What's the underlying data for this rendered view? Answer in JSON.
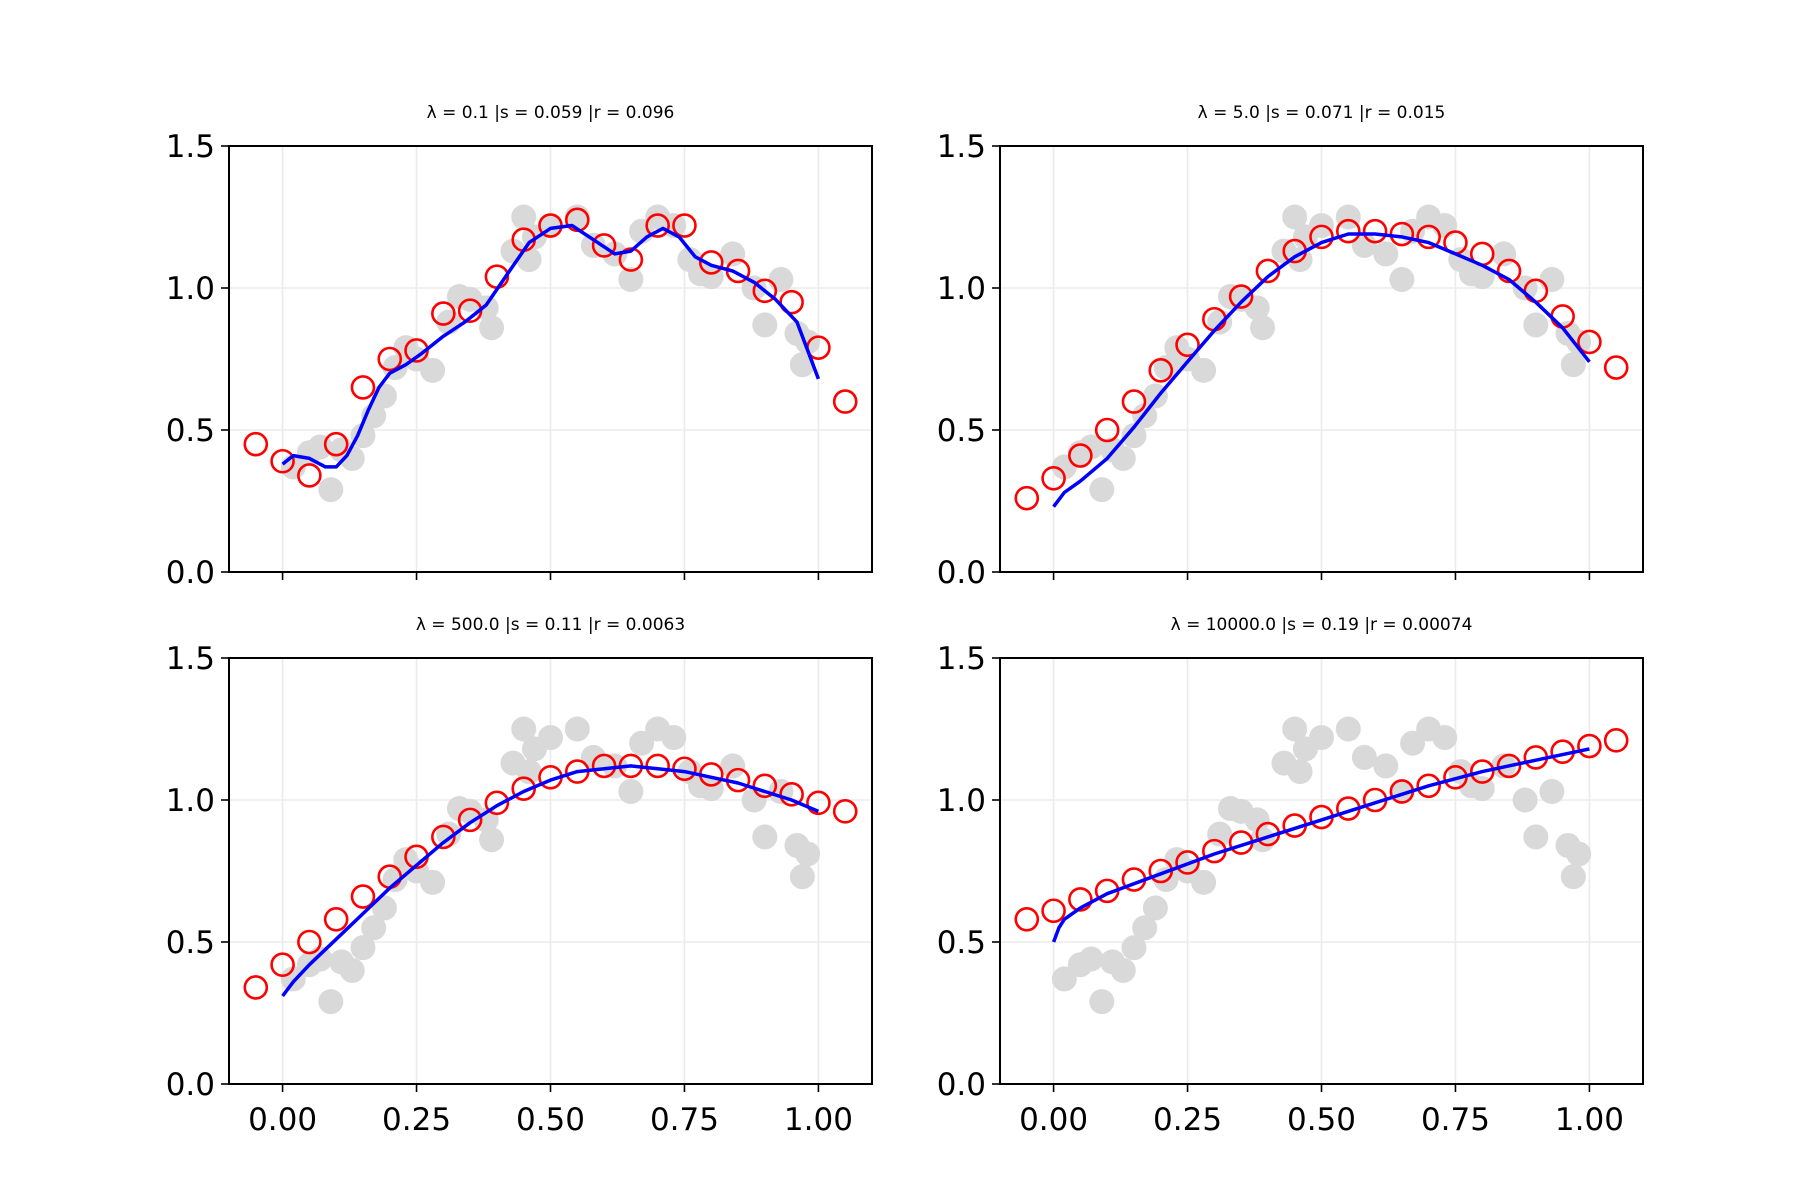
{
  "colors": {
    "raw_points": "#d9d9d9",
    "smoothed_markers": "#ff0000",
    "fit_line": "#0000ff",
    "grid": "#ebebeb",
    "axes": "#000000"
  },
  "chart_data": [
    {
      "type": "scatter",
      "title": "λ = 0.1 |s = 0.059 |r = 0.096",
      "xlim": [
        -0.1,
        1.1
      ],
      "ylim": [
        0.0,
        1.5
      ],
      "xticks": [
        "0.00",
        "0.25",
        "0.50",
        "0.75",
        "1.00"
      ],
      "yticks": [
        "0.0",
        "0.5",
        "1.0",
        "1.5"
      ],
      "show_xtick_labels": false,
      "grid": true,
      "raw": [
        [
          0.02,
          0.37
        ],
        [
          0.05,
          0.42
        ],
        [
          0.07,
          0.44
        ],
        [
          0.09,
          0.29
        ],
        [
          0.11,
          0.43
        ],
        [
          0.13,
          0.4
        ],
        [
          0.15,
          0.48
        ],
        [
          0.17,
          0.55
        ],
        [
          0.19,
          0.62
        ],
        [
          0.21,
          0.72
        ],
        [
          0.23,
          0.79
        ],
        [
          0.25,
          0.75
        ],
        [
          0.28,
          0.71
        ],
        [
          0.31,
          0.88
        ],
        [
          0.33,
          0.97
        ],
        [
          0.35,
          0.96
        ],
        [
          0.38,
          0.93
        ],
        [
          0.39,
          0.86
        ],
        [
          0.43,
          1.13
        ],
        [
          0.45,
          1.25
        ],
        [
          0.46,
          1.1
        ],
        [
          0.47,
          1.18
        ],
        [
          0.5,
          1.22
        ],
        [
          0.55,
          1.25
        ],
        [
          0.58,
          1.15
        ],
        [
          0.62,
          1.12
        ],
        [
          0.65,
          1.03
        ],
        [
          0.67,
          1.2
        ],
        [
          0.7,
          1.25
        ],
        [
          0.73,
          1.22
        ],
        [
          0.76,
          1.1
        ],
        [
          0.78,
          1.05
        ],
        [
          0.8,
          1.04
        ],
        [
          0.84,
          1.12
        ],
        [
          0.88,
          1.0
        ],
        [
          0.9,
          0.87
        ],
        [
          0.93,
          1.03
        ],
        [
          0.96,
          0.84
        ],
        [
          0.97,
          0.73
        ],
        [
          0.98,
          0.81
        ]
      ],
      "smoothed": [
        [
          -0.05,
          0.45
        ],
        [
          0.0,
          0.39
        ],
        [
          0.05,
          0.34
        ],
        [
          0.1,
          0.45
        ],
        [
          0.15,
          0.65
        ],
        [
          0.2,
          0.75
        ],
        [
          0.25,
          0.78
        ],
        [
          0.3,
          0.91
        ],
        [
          0.35,
          0.92
        ],
        [
          0.4,
          1.04
        ],
        [
          0.45,
          1.17
        ],
        [
          0.5,
          1.22
        ],
        [
          0.55,
          1.24
        ],
        [
          0.6,
          1.15
        ],
        [
          0.65,
          1.1
        ],
        [
          0.7,
          1.22
        ],
        [
          0.75,
          1.22
        ],
        [
          0.8,
          1.09
        ],
        [
          0.85,
          1.06
        ],
        [
          0.9,
          0.99
        ],
        [
          0.95,
          0.95
        ],
        [
          1.0,
          0.79
        ],
        [
          1.05,
          0.6
        ]
      ],
      "fit": [
        [
          0.0,
          0.38
        ],
        [
          0.02,
          0.41
        ],
        [
          0.05,
          0.4
        ],
        [
          0.08,
          0.37
        ],
        [
          0.1,
          0.37
        ],
        [
          0.12,
          0.41
        ],
        [
          0.14,
          0.48
        ],
        [
          0.16,
          0.57
        ],
        [
          0.18,
          0.65
        ],
        [
          0.2,
          0.7
        ],
        [
          0.23,
          0.73
        ],
        [
          0.26,
          0.77
        ],
        [
          0.3,
          0.83
        ],
        [
          0.34,
          0.88
        ],
        [
          0.38,
          0.94
        ],
        [
          0.42,
          1.05
        ],
        [
          0.46,
          1.16
        ],
        [
          0.5,
          1.21
        ],
        [
          0.54,
          1.22
        ],
        [
          0.58,
          1.17
        ],
        [
          0.62,
          1.12
        ],
        [
          0.65,
          1.13
        ],
        [
          0.68,
          1.18
        ],
        [
          0.71,
          1.21
        ],
        [
          0.74,
          1.18
        ],
        [
          0.77,
          1.11
        ],
        [
          0.8,
          1.08
        ],
        [
          0.84,
          1.06
        ],
        [
          0.88,
          1.02
        ],
        [
          0.92,
          0.96
        ],
        [
          0.96,
          0.88
        ],
        [
          1.0,
          0.68
        ]
      ]
    },
    {
      "type": "scatter",
      "title": "λ = 5.0 |s = 0.071 |r = 0.015",
      "xlim": [
        -0.1,
        1.1
      ],
      "ylim": [
        0.0,
        1.5
      ],
      "xticks": [
        "0.00",
        "0.25",
        "0.50",
        "0.75",
        "1.00"
      ],
      "yticks": [
        "0.0",
        "0.5",
        "1.0",
        "1.5"
      ],
      "show_xtick_labels": false,
      "grid": true,
      "raw": [
        [
          0.02,
          0.37
        ],
        [
          0.05,
          0.42
        ],
        [
          0.07,
          0.44
        ],
        [
          0.09,
          0.29
        ],
        [
          0.11,
          0.43
        ],
        [
          0.13,
          0.4
        ],
        [
          0.15,
          0.48
        ],
        [
          0.17,
          0.55
        ],
        [
          0.19,
          0.62
        ],
        [
          0.21,
          0.72
        ],
        [
          0.23,
          0.79
        ],
        [
          0.25,
          0.75
        ],
        [
          0.28,
          0.71
        ],
        [
          0.31,
          0.88
        ],
        [
          0.33,
          0.97
        ],
        [
          0.35,
          0.96
        ],
        [
          0.38,
          0.93
        ],
        [
          0.39,
          0.86
        ],
        [
          0.43,
          1.13
        ],
        [
          0.45,
          1.25
        ],
        [
          0.46,
          1.1
        ],
        [
          0.47,
          1.18
        ],
        [
          0.5,
          1.22
        ],
        [
          0.55,
          1.25
        ],
        [
          0.58,
          1.15
        ],
        [
          0.62,
          1.12
        ],
        [
          0.65,
          1.03
        ],
        [
          0.67,
          1.2
        ],
        [
          0.7,
          1.25
        ],
        [
          0.73,
          1.22
        ],
        [
          0.76,
          1.1
        ],
        [
          0.78,
          1.05
        ],
        [
          0.8,
          1.04
        ],
        [
          0.84,
          1.12
        ],
        [
          0.88,
          1.0
        ],
        [
          0.9,
          0.87
        ],
        [
          0.93,
          1.03
        ],
        [
          0.96,
          0.84
        ],
        [
          0.97,
          0.73
        ],
        [
          0.98,
          0.81
        ]
      ],
      "smoothed": [
        [
          -0.05,
          0.26
        ],
        [
          0.0,
          0.33
        ],
        [
          0.05,
          0.41
        ],
        [
          0.1,
          0.5
        ],
        [
          0.15,
          0.6
        ],
        [
          0.2,
          0.71
        ],
        [
          0.25,
          0.8
        ],
        [
          0.3,
          0.89
        ],
        [
          0.35,
          0.97
        ],
        [
          0.4,
          1.06
        ],
        [
          0.45,
          1.13
        ],
        [
          0.5,
          1.18
        ],
        [
          0.55,
          1.2
        ],
        [
          0.6,
          1.2
        ],
        [
          0.65,
          1.19
        ],
        [
          0.7,
          1.18
        ],
        [
          0.75,
          1.16
        ],
        [
          0.8,
          1.12
        ],
        [
          0.85,
          1.06
        ],
        [
          0.9,
          0.99
        ],
        [
          0.95,
          0.9
        ],
        [
          1.0,
          0.81
        ],
        [
          1.05,
          0.72
        ]
      ],
      "fit": [
        [
          0.0,
          0.23
        ],
        [
          0.02,
          0.28
        ],
        [
          0.05,
          0.32
        ],
        [
          0.1,
          0.4
        ],
        [
          0.15,
          0.51
        ],
        [
          0.2,
          0.63
        ],
        [
          0.25,
          0.74
        ],
        [
          0.3,
          0.85
        ],
        [
          0.35,
          0.95
        ],
        [
          0.4,
          1.04
        ],
        [
          0.45,
          1.11
        ],
        [
          0.5,
          1.16
        ],
        [
          0.55,
          1.19
        ],
        [
          0.6,
          1.19
        ],
        [
          0.65,
          1.18
        ],
        [
          0.7,
          1.16
        ],
        [
          0.75,
          1.12
        ],
        [
          0.8,
          1.08
        ],
        [
          0.85,
          1.03
        ],
        [
          0.9,
          0.95
        ],
        [
          0.95,
          0.86
        ],
        [
          1.0,
          0.74
        ]
      ]
    },
    {
      "type": "scatter",
      "title": "λ = 500.0 |s = 0.11 |r = 0.0063",
      "xlim": [
        -0.1,
        1.1
      ],
      "ylim": [
        0.0,
        1.5
      ],
      "xticks": [
        "0.00",
        "0.25",
        "0.50",
        "0.75",
        "1.00"
      ],
      "yticks": [
        "0.0",
        "0.5",
        "1.0",
        "1.5"
      ],
      "show_xtick_labels": true,
      "grid": true,
      "raw": [
        [
          0.02,
          0.37
        ],
        [
          0.05,
          0.42
        ],
        [
          0.07,
          0.44
        ],
        [
          0.09,
          0.29
        ],
        [
          0.11,
          0.43
        ],
        [
          0.13,
          0.4
        ],
        [
          0.15,
          0.48
        ],
        [
          0.17,
          0.55
        ],
        [
          0.19,
          0.62
        ],
        [
          0.21,
          0.72
        ],
        [
          0.23,
          0.79
        ],
        [
          0.25,
          0.75
        ],
        [
          0.28,
          0.71
        ],
        [
          0.31,
          0.88
        ],
        [
          0.33,
          0.97
        ],
        [
          0.35,
          0.96
        ],
        [
          0.38,
          0.93
        ],
        [
          0.39,
          0.86
        ],
        [
          0.43,
          1.13
        ],
        [
          0.45,
          1.25
        ],
        [
          0.46,
          1.1
        ],
        [
          0.47,
          1.18
        ],
        [
          0.5,
          1.22
        ],
        [
          0.55,
          1.25
        ],
        [
          0.58,
          1.15
        ],
        [
          0.62,
          1.12
        ],
        [
          0.65,
          1.03
        ],
        [
          0.67,
          1.2
        ],
        [
          0.7,
          1.25
        ],
        [
          0.73,
          1.22
        ],
        [
          0.76,
          1.1
        ],
        [
          0.78,
          1.05
        ],
        [
          0.8,
          1.04
        ],
        [
          0.84,
          1.12
        ],
        [
          0.88,
          1.0
        ],
        [
          0.9,
          0.87
        ],
        [
          0.93,
          1.03
        ],
        [
          0.96,
          0.84
        ],
        [
          0.97,
          0.73
        ],
        [
          0.98,
          0.81
        ]
      ],
      "smoothed": [
        [
          -0.05,
          0.34
        ],
        [
          0.0,
          0.42
        ],
        [
          0.05,
          0.5
        ],
        [
          0.1,
          0.58
        ],
        [
          0.15,
          0.66
        ],
        [
          0.2,
          0.73
        ],
        [
          0.25,
          0.8
        ],
        [
          0.3,
          0.87
        ],
        [
          0.35,
          0.93
        ],
        [
          0.4,
          0.99
        ],
        [
          0.45,
          1.04
        ],
        [
          0.5,
          1.08
        ],
        [
          0.55,
          1.1
        ],
        [
          0.6,
          1.12
        ],
        [
          0.65,
          1.12
        ],
        [
          0.7,
          1.12
        ],
        [
          0.75,
          1.11
        ],
        [
          0.8,
          1.09
        ],
        [
          0.85,
          1.07
        ],
        [
          0.9,
          1.05
        ],
        [
          0.95,
          1.02
        ],
        [
          1.0,
          0.99
        ],
        [
          1.05,
          0.96
        ]
      ],
      "fit": [
        [
          0.0,
          0.31
        ],
        [
          0.02,
          0.36
        ],
        [
          0.05,
          0.42
        ],
        [
          0.1,
          0.51
        ],
        [
          0.15,
          0.6
        ],
        [
          0.2,
          0.69
        ],
        [
          0.25,
          0.77
        ],
        [
          0.3,
          0.85
        ],
        [
          0.35,
          0.92
        ],
        [
          0.4,
          0.98
        ],
        [
          0.45,
          1.03
        ],
        [
          0.5,
          1.07
        ],
        [
          0.55,
          1.1
        ],
        [
          0.6,
          1.11
        ],
        [
          0.65,
          1.12
        ],
        [
          0.7,
          1.11
        ],
        [
          0.75,
          1.1
        ],
        [
          0.8,
          1.08
        ],
        [
          0.85,
          1.06
        ],
        [
          0.9,
          1.03
        ],
        [
          0.95,
          1.0
        ],
        [
          1.0,
          0.96
        ]
      ]
    },
    {
      "type": "scatter",
      "title": "λ = 10000.0 |s = 0.19 |r = 0.00074",
      "xlim": [
        -0.1,
        1.1
      ],
      "ylim": [
        0.0,
        1.5
      ],
      "xticks": [
        "0.00",
        "0.25",
        "0.50",
        "0.75",
        "1.00"
      ],
      "yticks": [
        "0.0",
        "0.5",
        "1.0",
        "1.5"
      ],
      "show_xtick_labels": true,
      "grid": true,
      "raw": [
        [
          0.02,
          0.37
        ],
        [
          0.05,
          0.42
        ],
        [
          0.07,
          0.44
        ],
        [
          0.09,
          0.29
        ],
        [
          0.11,
          0.43
        ],
        [
          0.13,
          0.4
        ],
        [
          0.15,
          0.48
        ],
        [
          0.17,
          0.55
        ],
        [
          0.19,
          0.62
        ],
        [
          0.21,
          0.72
        ],
        [
          0.23,
          0.79
        ],
        [
          0.25,
          0.75
        ],
        [
          0.28,
          0.71
        ],
        [
          0.31,
          0.88
        ],
        [
          0.33,
          0.97
        ],
        [
          0.35,
          0.96
        ],
        [
          0.38,
          0.93
        ],
        [
          0.39,
          0.86
        ],
        [
          0.43,
          1.13
        ],
        [
          0.45,
          1.25
        ],
        [
          0.46,
          1.1
        ],
        [
          0.47,
          1.18
        ],
        [
          0.5,
          1.22
        ],
        [
          0.55,
          1.25
        ],
        [
          0.58,
          1.15
        ],
        [
          0.62,
          1.12
        ],
        [
          0.65,
          1.03
        ],
        [
          0.67,
          1.2
        ],
        [
          0.7,
          1.25
        ],
        [
          0.73,
          1.22
        ],
        [
          0.76,
          1.1
        ],
        [
          0.78,
          1.05
        ],
        [
          0.8,
          1.04
        ],
        [
          0.84,
          1.12
        ],
        [
          0.88,
          1.0
        ],
        [
          0.9,
          0.87
        ],
        [
          0.93,
          1.03
        ],
        [
          0.96,
          0.84
        ],
        [
          0.97,
          0.73
        ],
        [
          0.98,
          0.81
        ]
      ],
      "smoothed": [
        [
          -0.05,
          0.58
        ],
        [
          0.0,
          0.61
        ],
        [
          0.05,
          0.65
        ],
        [
          0.1,
          0.68
        ],
        [
          0.15,
          0.72
        ],
        [
          0.2,
          0.75
        ],
        [
          0.25,
          0.78
        ],
        [
          0.3,
          0.82
        ],
        [
          0.35,
          0.85
        ],
        [
          0.4,
          0.88
        ],
        [
          0.45,
          0.91
        ],
        [
          0.5,
          0.94
        ],
        [
          0.55,
          0.97
        ],
        [
          0.6,
          1.0
        ],
        [
          0.65,
          1.03
        ],
        [
          0.7,
          1.05
        ],
        [
          0.75,
          1.08
        ],
        [
          0.8,
          1.1
        ],
        [
          0.85,
          1.12
        ],
        [
          0.9,
          1.15
        ],
        [
          0.95,
          1.17
        ],
        [
          1.0,
          1.19
        ],
        [
          1.05,
          1.21
        ]
      ],
      "fit": [
        [
          0.0,
          0.5
        ],
        [
          0.01,
          0.55
        ],
        [
          0.02,
          0.58
        ],
        [
          0.05,
          0.62
        ],
        [
          0.1,
          0.67
        ],
        [
          0.2,
          0.74
        ],
        [
          0.3,
          0.81
        ],
        [
          0.4,
          0.87
        ],
        [
          0.5,
          0.93
        ],
        [
          0.6,
          0.99
        ],
        [
          0.7,
          1.05
        ],
        [
          0.8,
          1.1
        ],
        [
          0.9,
          1.14
        ],
        [
          1.0,
          1.18
        ]
      ]
    }
  ]
}
